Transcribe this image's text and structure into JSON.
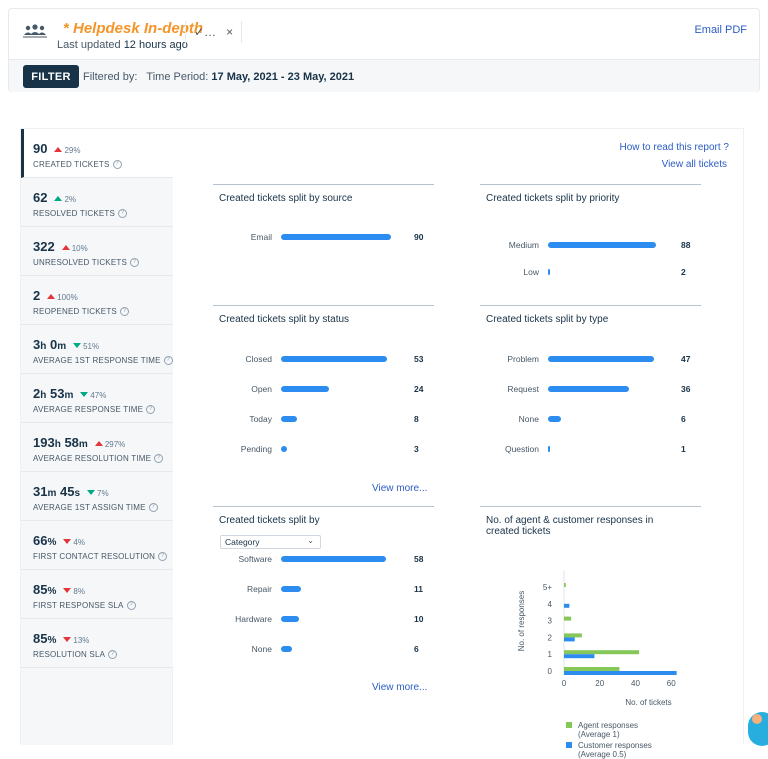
{
  "header": {
    "title": "* Helpdesk In-depth",
    "updated_prefix": "Last updated",
    "updated_value": "12 hours ago",
    "email_pdf": "Email PDF",
    "check_label": "✓…",
    "close_label": "×"
  },
  "filter": {
    "button_label": "FILTER",
    "prefix": "Filtered by:",
    "period_label": "Time Period:",
    "period_value": "17 May, 2021 - 23 May, 2021"
  },
  "links": {
    "how_to_read": "How to read this report ?",
    "view_all": "View all tickets",
    "view_more_1": "View more...",
    "view_more_2": "View more..."
  },
  "metrics": [
    {
      "value": "90",
      "parts": [],
      "change": "29%",
      "trend": "up-red",
      "label": "CREATED TICKETS"
    },
    {
      "value": "62",
      "parts": [],
      "change": "2%",
      "trend": "up-green",
      "label": "RESOLVED TICKETS"
    },
    {
      "value": "322",
      "parts": [],
      "change": "10%",
      "trend": "up-red",
      "label": "UNRESOLVED TICKETS"
    },
    {
      "value": "2",
      "parts": [],
      "change": "100%",
      "trend": "up-red",
      "label": "REOPENED TICKETS"
    },
    {
      "value": "",
      "parts": [
        [
          "3",
          "h"
        ],
        [
          "0",
          "m"
        ]
      ],
      "change": "51%",
      "trend": "down-green",
      "label": "AVERAGE 1ST RESPONSE TIME"
    },
    {
      "value": "",
      "parts": [
        [
          "2",
          "h"
        ],
        [
          "53",
          "m"
        ]
      ],
      "change": "47%",
      "trend": "down-green",
      "label": "AVERAGE RESPONSE TIME"
    },
    {
      "value": "",
      "parts": [
        [
          "193",
          "h"
        ],
        [
          "58",
          "m"
        ]
      ],
      "change": "297%",
      "trend": "up-red",
      "label": "AVERAGE RESOLUTION TIME"
    },
    {
      "value": "",
      "parts": [
        [
          "31",
          "m"
        ],
        [
          "45",
          "s"
        ]
      ],
      "change": "7%",
      "trend": "down-green",
      "label": "AVERAGE 1ST ASSIGN TIME"
    },
    {
      "value": "",
      "parts": [
        [
          "66",
          "%"
        ]
      ],
      "change": "4%",
      "trend": "down-red",
      "label": "FIRST CONTACT RESOLUTION"
    },
    {
      "value": "",
      "parts": [
        [
          "85",
          "%"
        ]
      ],
      "change": "8%",
      "trend": "down-red",
      "label": "FIRST RESPONSE SLA"
    },
    {
      "value": "",
      "parts": [
        [
          "85",
          "%"
        ]
      ],
      "change": "13%",
      "trend": "down-red",
      "label": "RESOLUTION SLA"
    }
  ],
  "cards": {
    "source": {
      "title": "Created tickets split by source",
      "max": 90,
      "rows": [
        {
          "label": "Email",
          "value": 90
        }
      ]
    },
    "priority": {
      "title": "Created tickets split by priority",
      "max": 90,
      "rows": [
        {
          "label": "Medium",
          "value": 88
        },
        {
          "label": "Low",
          "value": 2
        }
      ]
    },
    "status": {
      "title": "Created tickets split by status",
      "max": 55,
      "rows": [
        {
          "label": "Closed",
          "value": 53
        },
        {
          "label": "Open",
          "value": 24
        },
        {
          "label": "Today",
          "value": 8
        },
        {
          "label": "Pending",
          "value": 3
        }
      ]
    },
    "type": {
      "title": "Created tickets split by type",
      "max": 49,
      "rows": [
        {
          "label": "Problem",
          "value": 47
        },
        {
          "label": "Request",
          "value": 36
        },
        {
          "label": "None",
          "value": 6
        },
        {
          "label": "Question",
          "value": 1
        }
      ]
    },
    "category": {
      "title": "Created tickets split by",
      "select": "Category",
      "max": 61,
      "rows": [
        {
          "label": "Software",
          "value": 58
        },
        {
          "label": "Repair",
          "value": 11
        },
        {
          "label": "Hardware",
          "value": 10
        },
        {
          "label": "None",
          "value": 6
        }
      ]
    }
  },
  "chart_data": {
    "type": "bar",
    "orientation": "horizontal",
    "title": "No. of agent & customer responses in created tickets",
    "xlabel": "No. of tickets",
    "ylabel": "No. of responses",
    "categories": [
      "5+",
      "4",
      "3",
      "2",
      "1",
      "0"
    ],
    "xticks": [
      0,
      20,
      40,
      60,
      80
    ],
    "xlim": [
      0,
      80
    ],
    "series": [
      {
        "name": "Agent responses",
        "note": "(Average 1)",
        "color": "#86c75a",
        "values": [
          1,
          0,
          4,
          10,
          42,
          31
        ]
      },
      {
        "name": "Customer responses",
        "note": "(Average 0.5)",
        "color": "#2c8cf0",
        "values": [
          0,
          3,
          0,
          6,
          17,
          63
        ]
      }
    ],
    "legend": "bottom"
  }
}
